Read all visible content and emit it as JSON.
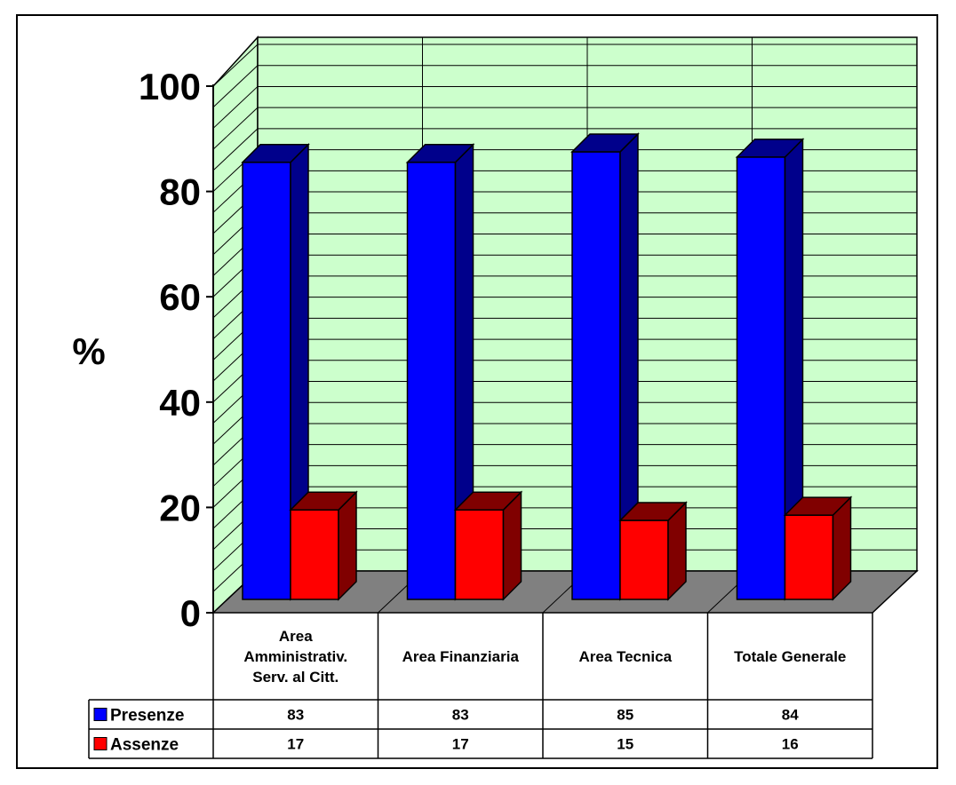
{
  "chart_data": {
    "type": "bar",
    "categories": [
      [
        "Area",
        "Amministrativ.",
        "Serv. al Citt."
      ],
      [
        "Area Finanziaria"
      ],
      [
        "Area Tecnica"
      ],
      [
        "Totale Generale"
      ]
    ],
    "series": [
      {
        "name": "Presenze",
        "values": [
          83,
          83,
          85,
          84
        ],
        "color": "#0000ff"
      },
      {
        "name": "Assenze",
        "values": [
          17,
          17,
          15,
          16
        ],
        "color": "#ff0000"
      }
    ],
    "ylabel": "%",
    "ylim": [
      0,
      100
    ],
    "yticks": [
      0,
      20,
      40,
      60,
      80,
      100
    ],
    "grid": true,
    "three_d": true,
    "data_table": true,
    "legend": "data-table",
    "colors": {
      "wall": "#ccffcc",
      "floor": "#808080",
      "presenze_side": "#00008b",
      "assenze_side": "#800000"
    }
  }
}
